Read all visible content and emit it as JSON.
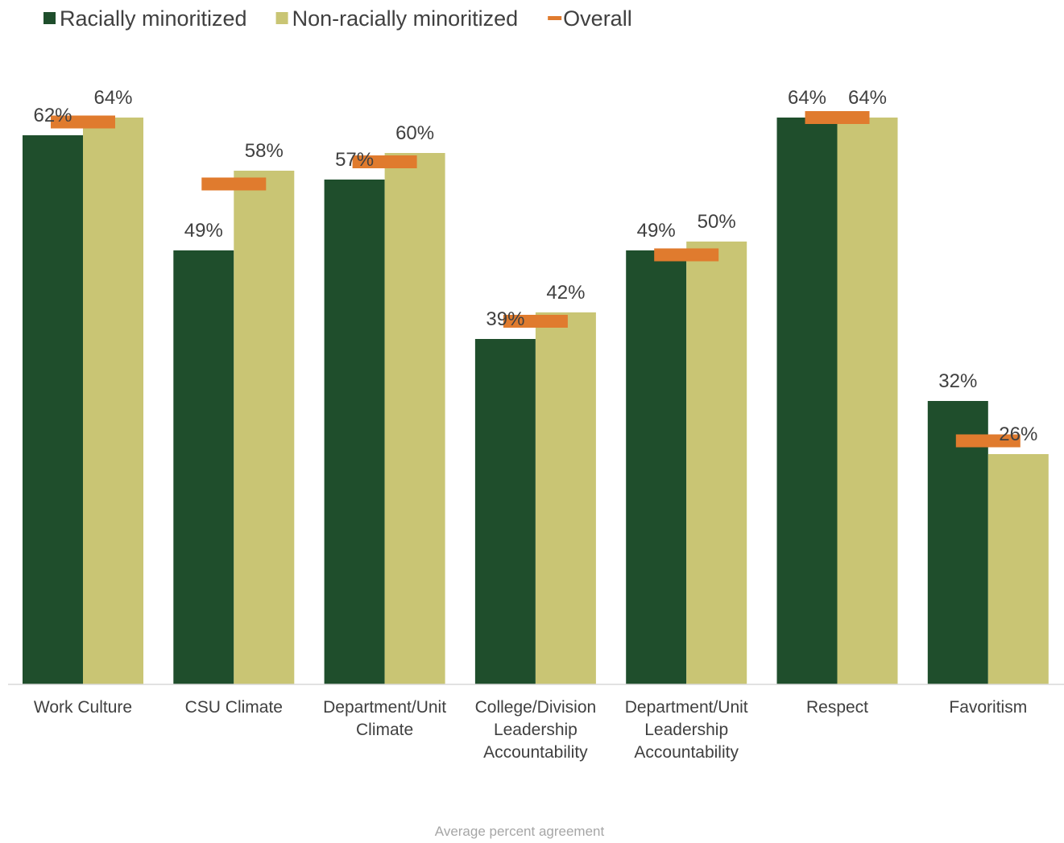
{
  "chart_data": {
    "type": "bar",
    "title": "",
    "xlabel": "Average percent agreement",
    "ylabel": "",
    "ylim": [
      0,
      70
    ],
    "grid": false,
    "legend_position": "top-left",
    "categories": [
      [
        "Work Culture"
      ],
      [
        "CSU Climate"
      ],
      [
        "Department/Unit",
        "Climate"
      ],
      [
        "College/Division",
        "Leadership",
        "Accountability"
      ],
      [
        "Department/Unit",
        "Leadership",
        "Accountability"
      ],
      [
        "Respect"
      ],
      [
        "Favoritism"
      ]
    ],
    "series": [
      {
        "name": "Racially minoritized",
        "color": "#1f4e2c",
        "values": [
          62,
          49,
          57,
          39,
          49,
          64,
          32
        ],
        "labels": [
          "62%",
          "49%",
          "57%",
          "39%",
          "49%",
          "64%",
          "32%"
        ]
      },
      {
        "name": "Non-racially minoritized",
        "color": "#c9c574",
        "values": [
          64,
          58,
          60,
          42,
          50,
          64,
          26
        ],
        "labels": [
          "64%",
          "58%",
          "60%",
          "42%",
          "50%",
          "64%",
          "26%"
        ]
      }
    ],
    "overall": {
      "name": "Overall",
      "color": "#e07b2e",
      "values": [
        63.5,
        56.5,
        59,
        41,
        48.5,
        64,
        27.5
      ]
    }
  }
}
